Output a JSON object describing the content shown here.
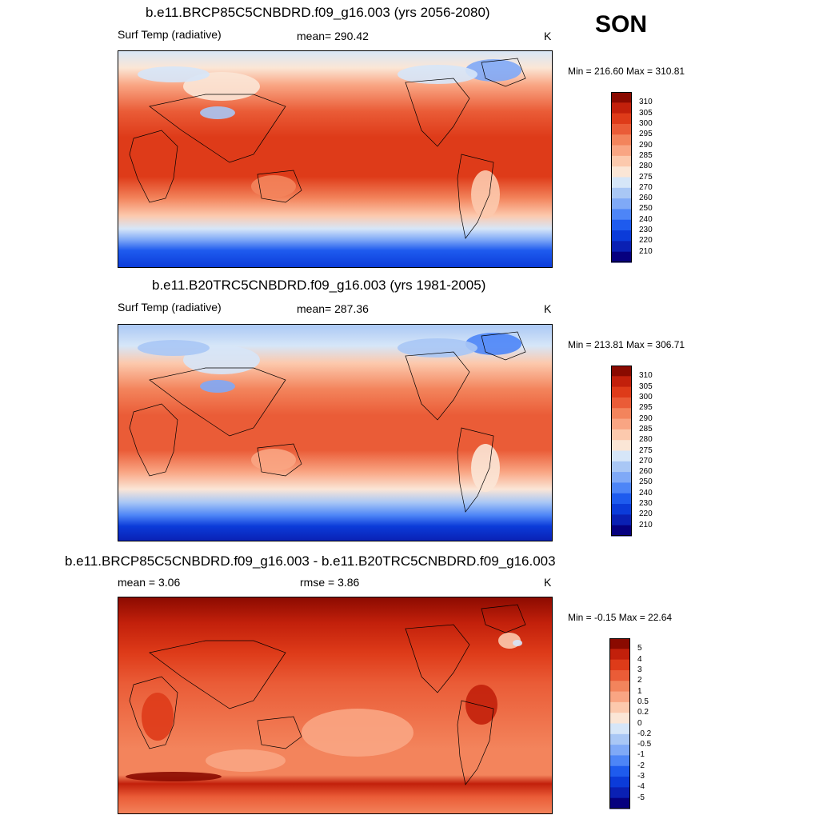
{
  "season": "SON",
  "units": "K",
  "palette_temp": [
    "#06007f",
    "#0a20b3",
    "#0b3bd9",
    "#1e5bee",
    "#4d85f7",
    "#7fa9f7",
    "#a9c7f5",
    "#d6e6f8",
    "#fbe6d6",
    "#fcc9ad",
    "#f9a583",
    "#f3845c",
    "#ea5c37",
    "#de3b19",
    "#c2200b",
    "#8a0a00"
  ],
  "palette_diff": [
    "#06007f",
    "#0a20b3",
    "#0b3bd9",
    "#1e5bee",
    "#4d85f7",
    "#7fa9f7",
    "#a9c7f5",
    "#d6e6f8",
    "#fbe6d6",
    "#fcc9ad",
    "#f9a583",
    "#f3845c",
    "#ea5c37",
    "#de3b19",
    "#c2200b",
    "#8a0a00"
  ],
  "panel1": {
    "title": "b.e11.BRCP85C5CNBDRD.f09_g16.003 (yrs 2056-2080)",
    "variable": "Surf Temp (radiative)",
    "mean": "mean= 290.42",
    "units": "K",
    "minmax": "Min = 216.60 Max = 310.81"
  },
  "panel2": {
    "title": "b.e11.B20TRC5CNBDRD.f09_g16.003 (yrs 1981-2005)",
    "variable": "Surf Temp (radiative)",
    "mean": "mean= 287.36",
    "units": "K",
    "minmax": "Min = 213.81 Max = 306.71"
  },
  "panel3": {
    "title": "b.e11.BRCP85C5CNBDRD.f09_g16.003 - b.e11.B20TRC5CNBDRD.f09_g16.003",
    "mean": "mean =   3.06",
    "rmse": "rmse =   3.86",
    "units": "K",
    "minmax": "Min =  -0.15 Max =  22.64"
  },
  "colorbar_temp": {
    "labels": [
      "310",
      "305",
      "300",
      "295",
      "290",
      "285",
      "280",
      "275",
      "270",
      "260",
      "250",
      "240",
      "230",
      "220",
      "210"
    ]
  },
  "colorbar_diff": {
    "labels": [
      "5",
      "4",
      "3",
      "2",
      "1",
      "0.5",
      "0.2",
      "0",
      "-0.2",
      "-0.5",
      "-1",
      "-2",
      "-3",
      "-4",
      "-5"
    ]
  }
}
